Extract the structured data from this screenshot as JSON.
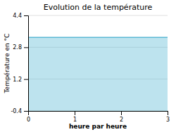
{
  "chart_data": {
    "type": "area",
    "title": "Evolution de la température",
    "xlabel": "heure par heure",
    "ylabel": "Température en °C",
    "x": [
      0,
      3
    ],
    "values": [
      3.3,
      3.3
    ],
    "color": "#5bb8d4",
    "xlim": [
      0,
      3
    ],
    "ylim": [
      -0.4,
      4.4
    ],
    "xticks": [
      0,
      1,
      2,
      3
    ],
    "yticks": [
      -0.4,
      1.2,
      2.8,
      4.4
    ],
    "grid": true
  }
}
